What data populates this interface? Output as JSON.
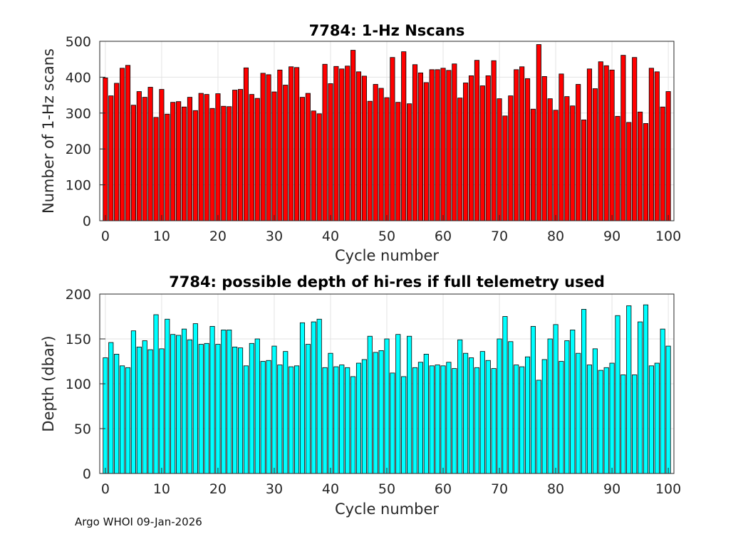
{
  "footer": "Argo WHOI 09-Jan-2026",
  "chart_data": [
    {
      "type": "bar",
      "title": "7784: 1-Hz Nscans",
      "xlabel": "Cycle number",
      "ylabel": "Number of 1-Hz scans",
      "xlim": [
        -1,
        101
      ],
      "ylim": [
        0,
        500
      ],
      "xticks": [
        0,
        10,
        20,
        30,
        40,
        50,
        60,
        70,
        80,
        90,
        100
      ],
      "yticks": [
        0,
        100,
        200,
        300,
        400,
        500
      ],
      "grid": true,
      "color": "#ff0000",
      "x": [
        0,
        1,
        2,
        3,
        4,
        5,
        6,
        7,
        8,
        9,
        10,
        11,
        12,
        13,
        14,
        15,
        16,
        17,
        18,
        19,
        20,
        21,
        22,
        23,
        24,
        25,
        26,
        27,
        28,
        29,
        30,
        31,
        32,
        33,
        34,
        35,
        36,
        37,
        38,
        39,
        40,
        41,
        42,
        43,
        44,
        45,
        46,
        47,
        48,
        49,
        50,
        51,
        52,
        53,
        54,
        55,
        56,
        57,
        58,
        59,
        60,
        61,
        62,
        63,
        64,
        65,
        66,
        67,
        68,
        69,
        70,
        71,
        72,
        73,
        74,
        75,
        76,
        77,
        78,
        79,
        80,
        81,
        82,
        83,
        84,
        85,
        86,
        87,
        88,
        89,
        90,
        91,
        92,
        93,
        94,
        95,
        96,
        97,
        98,
        99,
        100
      ],
      "values": [
        398,
        348,
        383,
        425,
        433,
        322,
        360,
        344,
        372,
        288,
        366,
        297,
        330,
        332,
        317,
        344,
        307,
        355,
        352,
        313,
        354,
        319,
        318,
        364,
        366,
        426,
        352,
        341,
        411,
        407,
        359,
        420,
        378,
        429,
        427,
        344,
        355,
        306,
        298,
        436,
        382,
        430,
        423,
        431,
        475,
        415,
        403,
        333,
        380,
        369,
        343,
        455,
        330,
        471,
        326,
        435,
        412,
        385,
        421,
        421,
        425,
        419,
        437,
        342,
        384,
        404,
        447,
        376,
        404,
        446,
        340,
        292,
        348,
        421,
        429,
        396,
        311,
        491,
        402,
        340,
        308,
        409,
        346,
        320,
        380,
        281,
        423,
        368,
        443,
        432,
        420,
        291,
        461,
        274,
        455,
        303,
        271,
        425,
        415,
        317,
        360
      ]
    },
    {
      "type": "bar",
      "title": "7784: possible depth of hi-res if full telemetry used",
      "xlabel": "Cycle number",
      "ylabel": "Depth (dbar)",
      "xlim": [
        -1,
        101
      ],
      "ylim": [
        0,
        200
      ],
      "xticks": [
        0,
        10,
        20,
        30,
        40,
        50,
        60,
        70,
        80,
        90,
        100
      ],
      "yticks": [
        0,
        50,
        100,
        150,
        200
      ],
      "grid": true,
      "color": "#00ffff",
      "x": [
        0,
        1,
        2,
        3,
        4,
        5,
        6,
        7,
        8,
        9,
        10,
        11,
        12,
        13,
        14,
        15,
        16,
        17,
        18,
        19,
        20,
        21,
        22,
        23,
        24,
        25,
        26,
        27,
        28,
        29,
        30,
        31,
        32,
        33,
        34,
        35,
        36,
        37,
        38,
        39,
        40,
        41,
        42,
        43,
        44,
        45,
        46,
        47,
        48,
        49,
        50,
        51,
        52,
        53,
        54,
        55,
        56,
        57,
        58,
        59,
        60,
        61,
        62,
        63,
        64,
        65,
        66,
        67,
        68,
        69,
        70,
        71,
        72,
        73,
        74,
        75,
        76,
        77,
        78,
        79,
        80,
        81,
        82,
        83,
        84,
        85,
        86,
        87,
        88,
        89,
        90,
        91,
        92,
        93,
        94,
        95,
        96,
        97,
        98,
        99,
        100
      ],
      "values": [
        129,
        146,
        133,
        120,
        118,
        159,
        141,
        148,
        138,
        177,
        139,
        172,
        155,
        154,
        161,
        149,
        167,
        144,
        145,
        164,
        144,
        160,
        160,
        141,
        140,
        120,
        145,
        150,
        125,
        126,
        142,
        121,
        136,
        119,
        120,
        168,
        144,
        169,
        172,
        118,
        134,
        119,
        121,
        118,
        108,
        123,
        127,
        153,
        135,
        137,
        150,
        112,
        155,
        108,
        153,
        118,
        124,
        133,
        120,
        121,
        120,
        124,
        117,
        149,
        134,
        129,
        118,
        136,
        126,
        117,
        150,
        175,
        147,
        121,
        119,
        130,
        164,
        104,
        127,
        150,
        166,
        125,
        148,
        160,
        134,
        183,
        121,
        139,
        115,
        118,
        123,
        176,
        110,
        187,
        110,
        169,
        188,
        120,
        123,
        161,
        142
      ]
    }
  ]
}
